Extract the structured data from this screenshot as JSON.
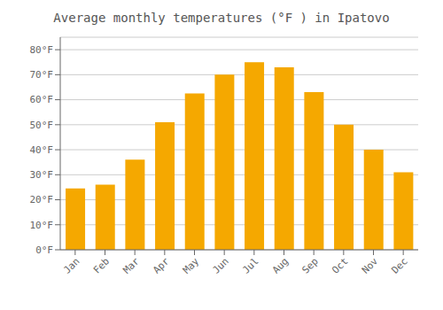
{
  "chart_data": {
    "type": "bar",
    "title": "Average monthly temperatures (°F ) in Ipatovo",
    "categories": [
      "Jan",
      "Feb",
      "Mar",
      "Apr",
      "May",
      "Jun",
      "Jul",
      "Aug",
      "Sep",
      "Oct",
      "Nov",
      "Dec"
    ],
    "values": [
      24.5,
      26.0,
      36.0,
      51.0,
      62.5,
      70.0,
      75.0,
      73.0,
      63.0,
      50.0,
      40.0,
      31.0
    ],
    "color": "#F5A800",
    "ylim": [
      0,
      85
    ],
    "yticks": [
      {
        "value": 0,
        "label": "0°F"
      },
      {
        "value": 10,
        "label": "10°F"
      },
      {
        "value": 20,
        "label": "20°F"
      },
      {
        "value": 30,
        "label": "30°F"
      },
      {
        "value": 40,
        "label": "40°F"
      },
      {
        "value": 50,
        "label": "50°F"
      },
      {
        "value": 60,
        "label": "60°F"
      },
      {
        "value": 70,
        "label": "70°F"
      },
      {
        "value": 80,
        "label": "80°F"
      }
    ],
    "grid": true
  }
}
